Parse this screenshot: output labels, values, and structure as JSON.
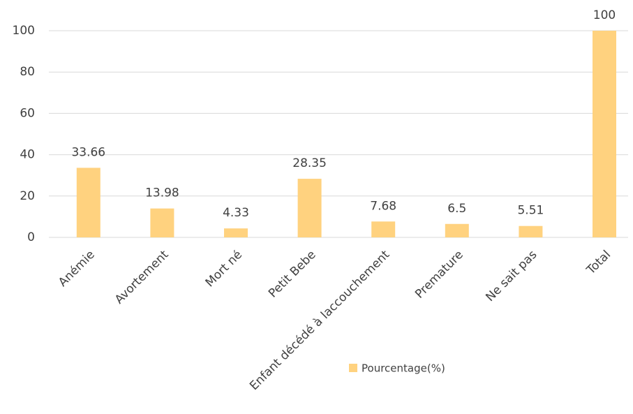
{
  "chart_data": {
    "type": "bar",
    "categories": [
      "Anémie",
      "Avortement",
      "Mort né",
      "Petit Bebe",
      "Enfant décédé à laccouchement",
      "Premature",
      "Ne sait pas",
      "Total"
    ],
    "series": [
      {
        "name": "Pourcentage(%)",
        "color": "#ffd27f",
        "values": [
          33.66,
          13.98,
          4.33,
          28.35,
          7.68,
          6.5,
          5.51,
          100
        ]
      }
    ],
    "ylim": [
      0,
      100
    ],
    "yticks": [
      0,
      20,
      40,
      60,
      80,
      100
    ],
    "grid": true,
    "legend": "bottom"
  }
}
